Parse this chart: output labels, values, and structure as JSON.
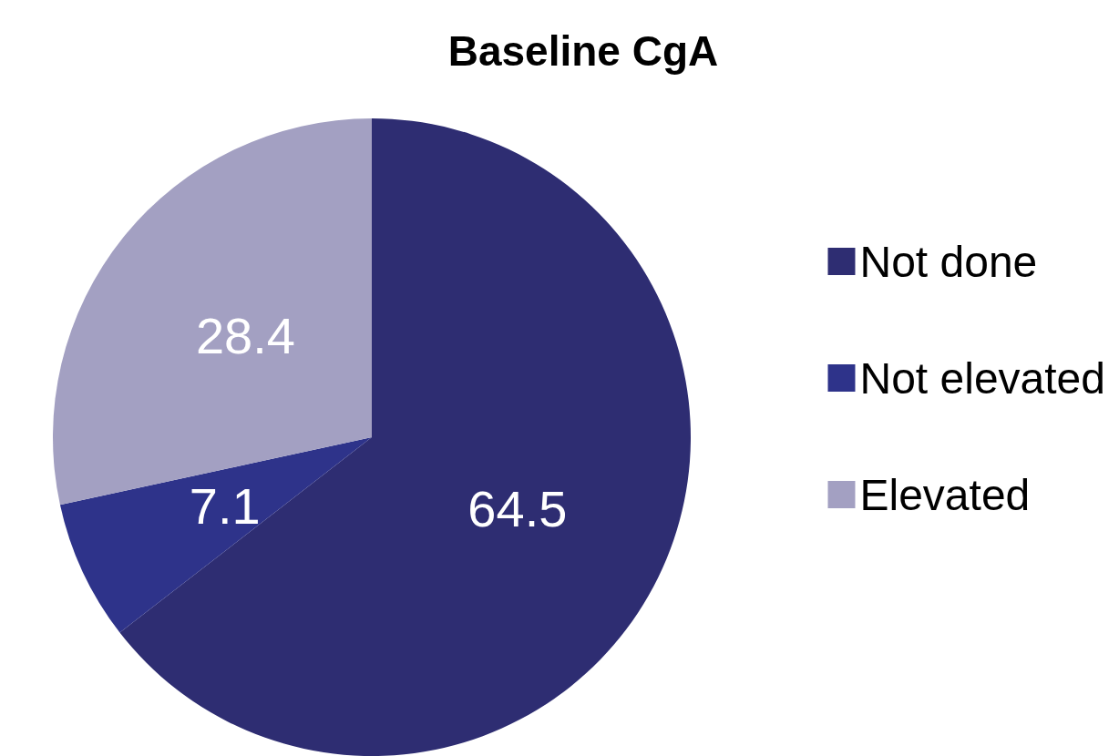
{
  "chart_data": {
    "type": "pie",
    "title": "Baseline CgA",
    "categories": [
      "Not done",
      "Not elevated",
      "Elevated"
    ],
    "values": [
      64.5,
      7.1,
      28.4
    ],
    "colors": [
      "#2e2d72",
      "#2e338a",
      "#a3a0c2"
    ],
    "data_labels": true,
    "legend": "right"
  }
}
